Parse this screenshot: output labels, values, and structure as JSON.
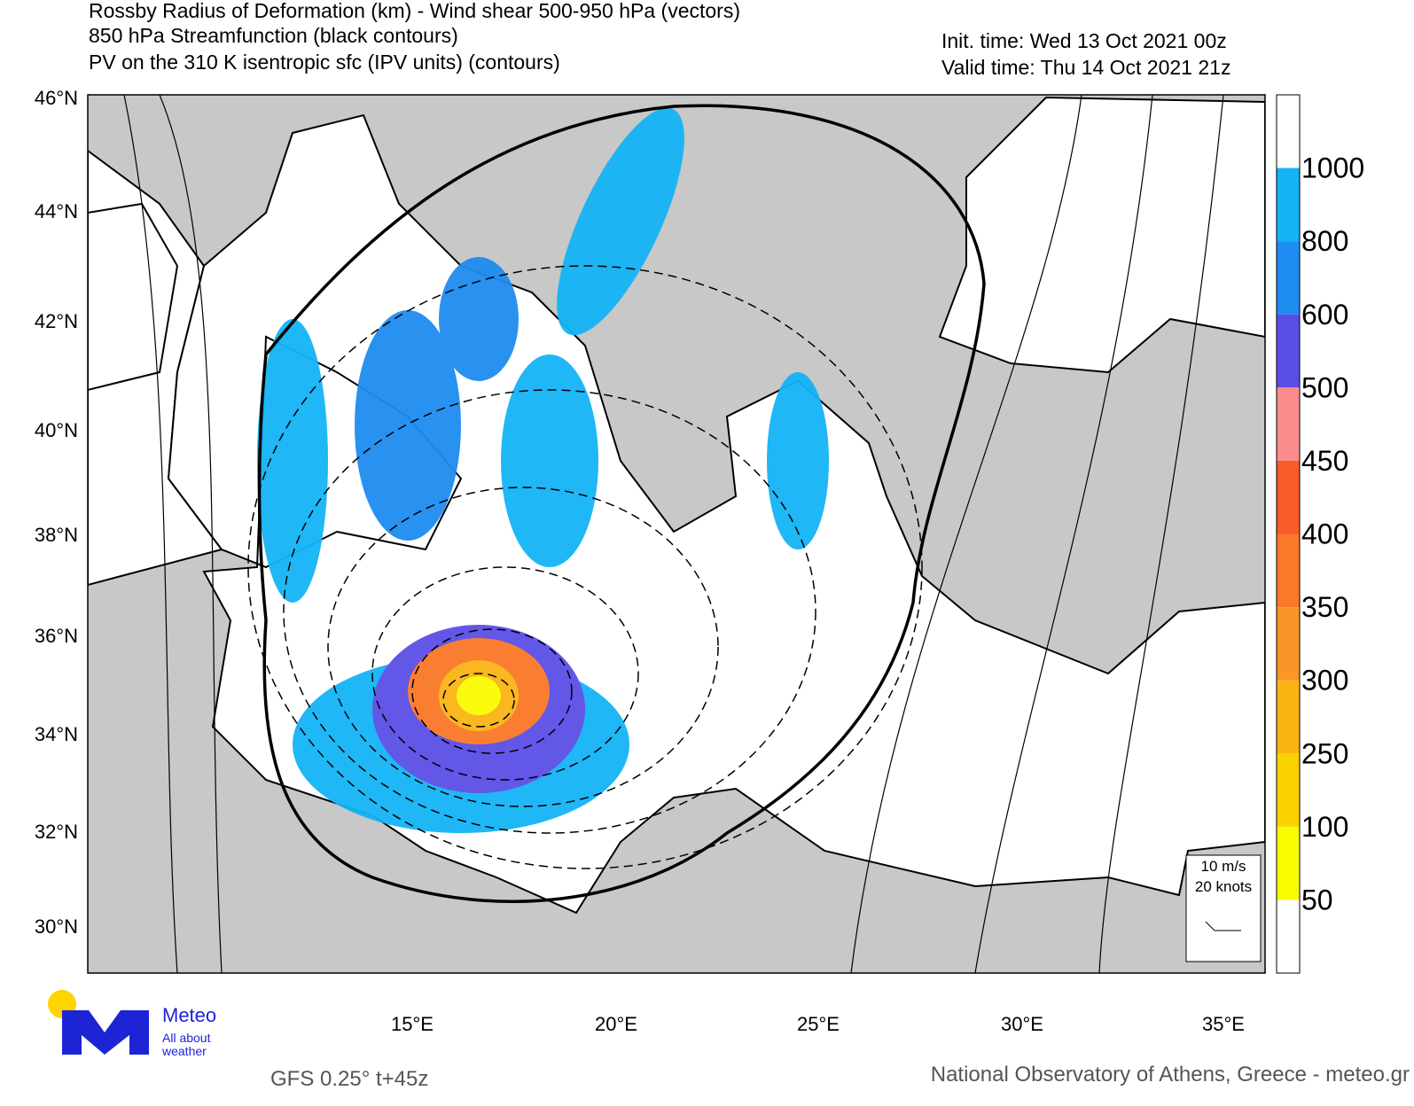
{
  "header": {
    "title_lines": [
      "Rossby Radius of Deformation (km) - Wind shear 500-950 hPa (vectors)",
      "850 hPa Streamfunction (black contours)",
      "PV on the 310 K isentropic sfc (IPV units) (contours)"
    ],
    "init_time": "Init. time: Wed 13 Oct 2021 00z",
    "valid_time": "Valid time: Thu 14 Oct 2021 21z"
  },
  "axes": {
    "lat_labels": [
      "46°N",
      "44°N",
      "42°N",
      "40°N",
      "38°N",
      "36°N",
      "34°N",
      "32°N",
      "30°N"
    ],
    "lon_labels": [
      "15°E",
      "20°E",
      "25°E",
      "30°E",
      "35°E"
    ]
  },
  "colorbar": {
    "levels": [
      1000,
      800,
      600,
      500,
      450,
      400,
      350,
      300,
      250,
      100,
      50
    ],
    "colors": [
      "#ffffff",
      "#14b4f5",
      "#1e8cf0",
      "#5a4ee6",
      "#fa8c8c",
      "#fa5a28",
      "#fa7828",
      "#fa9628",
      "#fab414",
      "#fad200",
      "#fafa00",
      "#ffffff"
    ]
  },
  "vector_key": {
    "lines": [
      "10 m/s",
      "20 knots"
    ]
  },
  "logo": {
    "name": "Meteo",
    "tagline": [
      "All about",
      "weather"
    ]
  },
  "footer": {
    "model": "GFS 0.25° t+45z",
    "credit": "National Observatory of Athens, Greece - meteo.gr"
  }
}
